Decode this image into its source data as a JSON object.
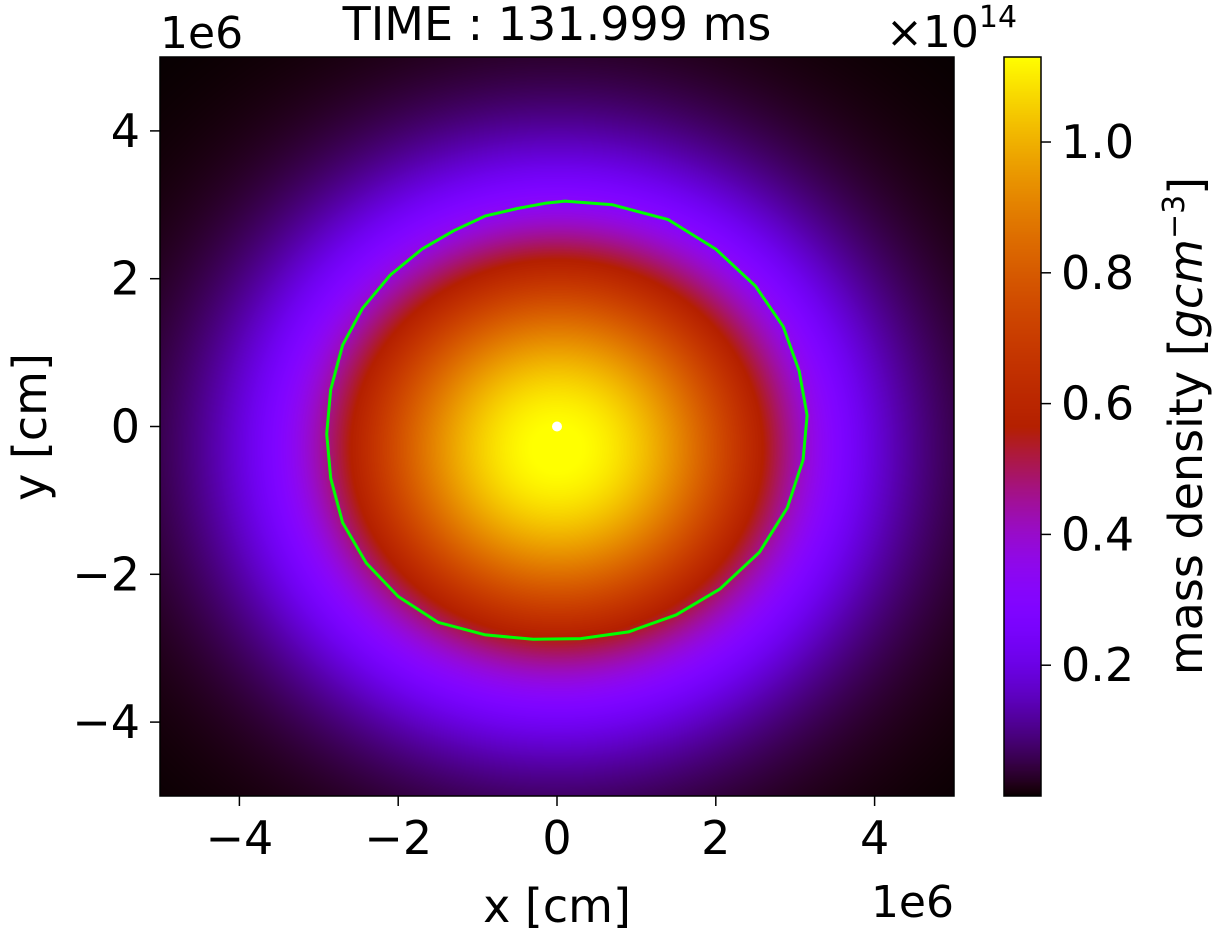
{
  "chart_data": {
    "type": "heatmap",
    "title": "TIME : 131.999 ms",
    "xlabel": "x [cm]",
    "ylabel": "y [cm]",
    "x_multiplier": "1e6",
    "y_multiplier": "1e6",
    "xlim": [
      -5,
      5
    ],
    "ylim": [
      -5,
      5
    ],
    "xticks": [
      -4,
      -2,
      0,
      2,
      4
    ],
    "yticks": [
      -4,
      -2,
      0,
      2,
      4
    ],
    "xtick_labels": [
      "−4",
      "−2",
      "0",
      "2",
      "4"
    ],
    "ytick_labels": [
      "−4",
      "−2",
      "0",
      "2",
      "4"
    ],
    "grid": false,
    "colormap": "gnuplot",
    "colorbar": {
      "label_main": "mass density [",
      "label_math": "gcm",
      "label_exp": "−3",
      "label_close": "]",
      "offset_base": "×10",
      "offset_exp": "14",
      "min": 0.0,
      "max": 1.13,
      "ticks": [
        0.2,
        0.4,
        0.6,
        0.8,
        1.0
      ],
      "tick_labels": [
        "0.2",
        "0.4",
        "0.6",
        "0.8",
        "1.0"
      ]
    },
    "density_model": {
      "center": [
        0.0,
        -0.3
      ],
      "rx": 3.1,
      "ry": 3.05,
      "peak": 1.13,
      "envelope_radius": 4.3
    },
    "contour": {
      "color": "#00ff00",
      "points": [
        [
          0.1,
          3.05
        ],
        [
          -0.15,
          3.02
        ],
        [
          -0.5,
          2.95
        ],
        [
          -0.9,
          2.85
        ],
        [
          -1.3,
          2.65
        ],
        [
          -1.7,
          2.4
        ],
        [
          -2.1,
          2.05
        ],
        [
          -2.45,
          1.6
        ],
        [
          -2.7,
          1.1
        ],
        [
          -2.85,
          0.5
        ],
        [
          -2.9,
          -0.1
        ],
        [
          -2.85,
          -0.7
        ],
        [
          -2.7,
          -1.3
        ],
        [
          -2.4,
          -1.85
        ],
        [
          -2.0,
          -2.3
        ],
        [
          -1.5,
          -2.65
        ],
        [
          -0.9,
          -2.82
        ],
        [
          -0.3,
          -2.88
        ],
        [
          0.3,
          -2.87
        ],
        [
          0.9,
          -2.78
        ],
        [
          1.5,
          -2.55
        ],
        [
          2.05,
          -2.2
        ],
        [
          2.55,
          -1.7
        ],
        [
          2.9,
          -1.1
        ],
        [
          3.1,
          -0.45
        ],
        [
          3.15,
          0.15
        ],
        [
          3.05,
          0.75
        ],
        [
          2.85,
          1.35
        ],
        [
          2.5,
          1.9
        ],
        [
          2.0,
          2.4
        ],
        [
          1.4,
          2.8
        ],
        [
          0.7,
          3.0
        ],
        [
          0.1,
          3.05
        ]
      ]
    },
    "marker": {
      "x": 0.0,
      "y": 0.0,
      "color": "#ffffff"
    }
  }
}
